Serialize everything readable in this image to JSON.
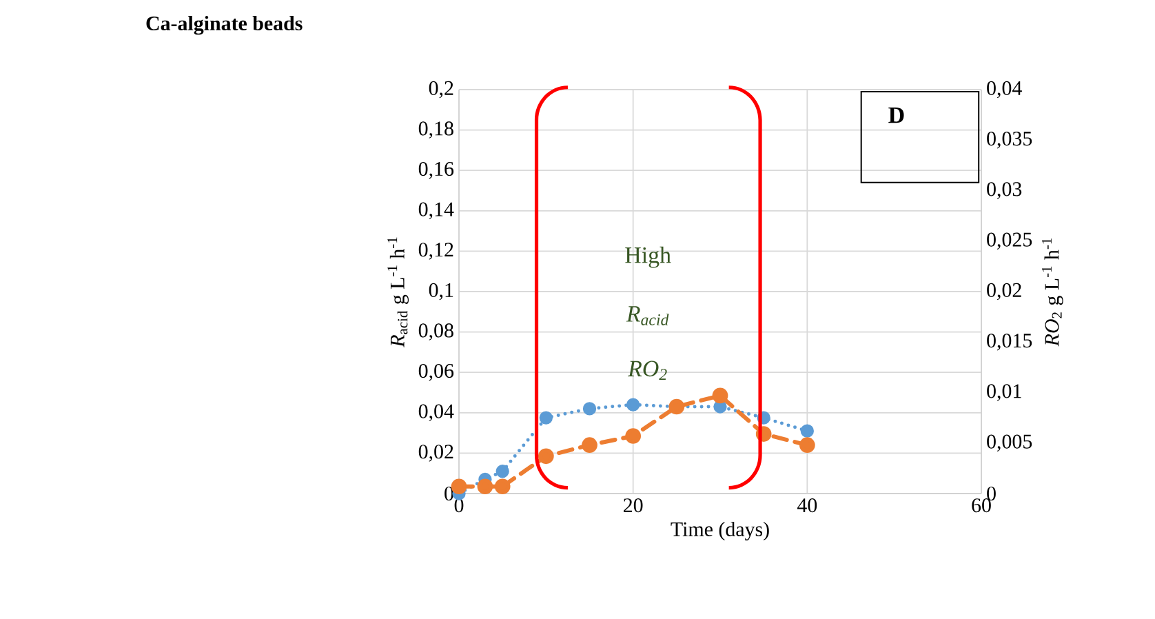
{
  "chart_data": {
    "type": "line",
    "title": "Ca-alginate beads",
    "xlabel": "Time (days)",
    "ylabel": "*R*$_{acid}$ g L$^{-1}$ h$^{-1}$",
    "y2label": "*RO*$_{2}$ g L$^{-1}$ h$^{-1}$",
    "x": [
      0,
      3,
      5,
      10,
      15,
      20,
      25,
      30,
      35,
      40
    ],
    "series": [
      {
        "color": "#5b9bd5",
        "line_style": "dotted",
        "values": [
          0.0,
          0.007,
          0.011,
          0.0375,
          0.042,
          0.044,
          0.043,
          0.043,
          0.0375,
          0.031
        ]
      },
      {
        "color": "#ed7d31",
        "line_style": "dashed",
        "axis": "y2",
        "values": [
          0.0007,
          0.0007,
          0.0007,
          0.0037,
          0.0048,
          0.0057,
          0.0086,
          0.0097,
          0.0059,
          0.0048
        ]
      }
    ],
    "xlim": [
      0,
      60
    ],
    "xticks": [
      0,
      20,
      40,
      60
    ],
    "ylim": [
      0,
      0.2
    ],
    "yticks": [
      {
        "value": 0,
        "label": "0"
      },
      {
        "value": 0.02,
        "label": "0,02"
      },
      {
        "value": 0.04,
        "label": "0,04"
      },
      {
        "value": 0.06,
        "label": "0,06"
      },
      {
        "value": 0.08,
        "label": "0,08"
      },
      {
        "value": 0.1,
        "label": "0,1"
      },
      {
        "value": 0.12,
        "label": "0,12"
      },
      {
        "value": 0.14,
        "label": "0,14"
      },
      {
        "value": 0.16,
        "label": "0,16"
      },
      {
        "value": 0.18,
        "label": "0,18"
      },
      {
        "value": 0.2,
        "label": "0,2"
      }
    ],
    "y2lim": [
      0,
      0.04
    ],
    "y2ticks": [
      {
        "value": 0,
        "label": "0"
      },
      {
        "value": 0.005,
        "label": "0,005"
      },
      {
        "value": 0.01,
        "label": "0,01"
      },
      {
        "value": 0.015,
        "label": "0,015"
      },
      {
        "value": 0.02,
        "label": "0,02"
      },
      {
        "value": 0.025,
        "label": "0,025"
      },
      {
        "value": 0.03,
        "label": "0,03"
      },
      {
        "value": 0.035,
        "label": "0,035"
      },
      {
        "value": 0.04,
        "label": "0,04"
      }
    ],
    "annotations": [
      "High",
      "*R*$_{acid}$",
      "*RO*$_{2}$",
      "D"
    ],
    "grid": true,
    "marker": "circle"
  }
}
